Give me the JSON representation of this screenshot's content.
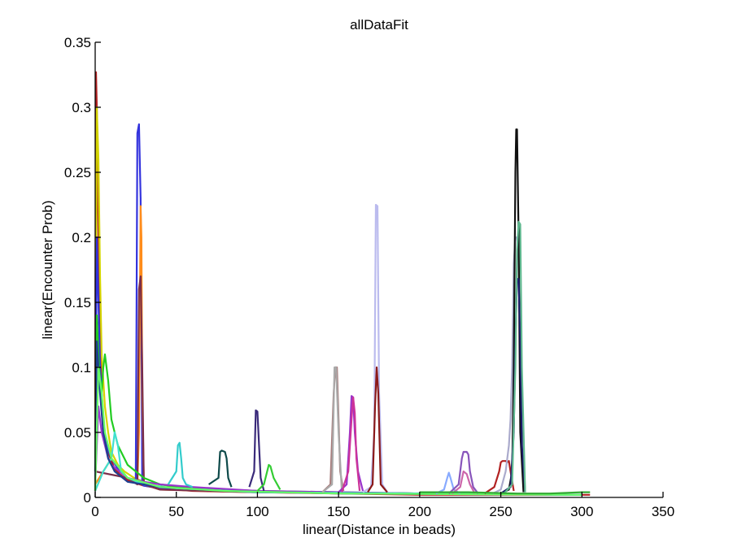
{
  "chart_data": {
    "type": "line",
    "title": "allDataFit",
    "xlabel": "linear(Distance in beads)",
    "ylabel": "linear(Encounter Prob)",
    "xlim": [
      0,
      350
    ],
    "ylim": [
      0,
      0.35
    ],
    "xticks": [
      "0",
      "50",
      "100",
      "150",
      "200",
      "250",
      "300",
      "350"
    ],
    "yticks": [
      "0",
      "0.05",
      "0.1",
      "0.15",
      "0.2",
      "0.25",
      "0.3",
      "0.35"
    ],
    "grid": false,
    "legend": "none",
    "series": [
      {
        "color": "#b22222",
        "x": [
          0,
          0.5,
          1,
          2,
          3,
          4,
          5,
          6,
          8,
          10,
          12,
          15,
          18,
          22,
          25,
          30,
          40,
          60,
          100,
          150,
          200,
          250,
          300,
          305
        ],
        "y": [
          0.05,
          0.327,
          0.3,
          0.2,
          0.12,
          0.08,
          0.06,
          0.045,
          0.035,
          0.028,
          0.022,
          0.018,
          0.015,
          0.012,
          0.011,
          0.009,
          0.007,
          0.005,
          0.004,
          0.003,
          0.002,
          0.002,
          0.002,
          0.002
        ]
      },
      {
        "color": "#d4d400",
        "x": [
          0,
          1,
          2,
          3,
          4,
          6,
          8,
          10,
          14,
          18,
          24,
          30,
          50,
          80,
          120,
          200,
          300
        ],
        "y": [
          0.03,
          0.3,
          0.26,
          0.17,
          0.11,
          0.07,
          0.05,
          0.035,
          0.025,
          0.02,
          0.015,
          0.012,
          0.008,
          0.006,
          0.004,
          0.003,
          0.002
        ]
      },
      {
        "color": "#3333dd",
        "x": [
          0,
          1,
          2,
          3,
          5,
          7,
          10,
          15,
          20,
          25,
          26,
          27,
          28,
          29,
          30,
          35,
          50,
          100,
          200,
          300
        ],
        "y": [
          0.02,
          0.2,
          0.15,
          0.1,
          0.06,
          0.04,
          0.03,
          0.02,
          0.015,
          0.012,
          0.28,
          0.287,
          0.23,
          0.01,
          0.009,
          0.008,
          0.006,
          0.004,
          0.003,
          0.002
        ]
      },
      {
        "color": "#ff8c1a",
        "x": [
          0,
          10,
          20,
          26,
          27,
          28,
          28.5,
          29,
          30,
          40,
          100,
          300
        ],
        "y": [
          0.01,
          0.03,
          0.015,
          0.01,
          0.05,
          0.224,
          0.2,
          0.08,
          0.01,
          0.006,
          0.004,
          0.002
        ]
      },
      {
        "color": "#7a2e4a",
        "x": [
          0,
          20,
          26,
          27,
          28,
          29,
          30,
          40,
          100,
          300
        ],
        "y": [
          0.02,
          0.015,
          0.01,
          0.16,
          0.17,
          0.1,
          0.01,
          0.006,
          0.004,
          0.002
        ]
      },
      {
        "color": "#22cc22",
        "x": [
          0,
          1,
          2,
          3,
          4,
          5,
          6,
          8,
          10,
          12,
          14,
          16,
          20,
          30,
          40,
          60,
          100,
          200,
          300
        ],
        "y": [
          0.02,
          0.14,
          0.11,
          0.09,
          0.08,
          0.1,
          0.11,
          0.09,
          0.06,
          0.05,
          0.04,
          0.035,
          0.025,
          0.015,
          0.01,
          0.007,
          0.005,
          0.003,
          0.002
        ]
      },
      {
        "color": "#9933cc",
        "x": [
          0,
          2,
          4,
          6,
          8,
          10,
          15,
          20,
          30,
          40,
          60,
          100,
          200,
          300
        ],
        "y": [
          0.01,
          0.07,
          0.05,
          0.04,
          0.03,
          0.025,
          0.02,
          0.015,
          0.012,
          0.01,
          0.008,
          0.005,
          0.003,
          0.002
        ]
      },
      {
        "color": "#40e0d0",
        "x": [
          0,
          5,
          10,
          12,
          14,
          16,
          20,
          30,
          50,
          100,
          300
        ],
        "y": [
          0.005,
          0.02,
          0.03,
          0.05,
          0.04,
          0.02,
          0.015,
          0.01,
          0.007,
          0.004,
          0.002
        ]
      },
      {
        "color": "#1f3f8f",
        "x": [
          0,
          1,
          3,
          5,
          8,
          12,
          20,
          40,
          80,
          150,
          300
        ],
        "y": [
          0.005,
          0.12,
          0.08,
          0.05,
          0.03,
          0.02,
          0.012,
          0.008,
          0.005,
          0.003,
          0.002
        ]
      },
      {
        "color": "#66ff66",
        "x": [
          0,
          2,
          4,
          6,
          10,
          20,
          40,
          80,
          150,
          300
        ],
        "y": [
          0.005,
          0.1,
          0.08,
          0.05,
          0.03,
          0.015,
          0.008,
          0.005,
          0.003,
          0.002
        ]
      },
      {
        "color": "#33cccc",
        "x": [
          45,
          50,
          51,
          52,
          53,
          54,
          56,
          60
        ],
        "y": [
          0.01,
          0.02,
          0.04,
          0.042,
          0.03,
          0.015,
          0.01,
          0.008
        ]
      },
      {
        "color": "#0e4a4a",
        "x": [
          70,
          76,
          77,
          78,
          80,
          81,
          82,
          84
        ],
        "y": [
          0.01,
          0.015,
          0.035,
          0.036,
          0.035,
          0.03,
          0.015,
          0.008
        ]
      },
      {
        "color": "#3a2a7a",
        "x": [
          95,
          98,
          99,
          100,
          101,
          102,
          104
        ],
        "y": [
          0.008,
          0.02,
          0.067,
          0.066,
          0.04,
          0.015,
          0.005
        ]
      },
      {
        "color": "#33cc33",
        "x": [
          100,
          104,
          106,
          107,
          108,
          110,
          114
        ],
        "y": [
          0.005,
          0.01,
          0.02,
          0.025,
          0.024,
          0.015,
          0.006
        ]
      },
      {
        "color": "#a87a7a",
        "x": [
          140,
          145,
          147,
          148,
          149,
          150,
          151,
          153
        ],
        "y": [
          0.004,
          0.01,
          0.08,
          0.1,
          0.1,
          0.06,
          0.02,
          0.005
        ]
      },
      {
        "color": "#aaaaaa",
        "x": [
          140,
          146,
          147.5,
          148.5,
          150,
          152
        ],
        "y": [
          0.004,
          0.01,
          0.1,
          0.1,
          0.05,
          0.005
        ]
      },
      {
        "color": "#9933cc",
        "x": [
          150,
          155,
          157,
          158,
          159,
          160,
          162,
          165
        ],
        "y": [
          0.004,
          0.01,
          0.05,
          0.078,
          0.077,
          0.05,
          0.02,
          0.005
        ]
      },
      {
        "color": "#cc3399",
        "x": [
          152,
          156,
          158,
          159,
          160,
          161,
          163
        ],
        "y": [
          0.004,
          0.02,
          0.06,
          0.077,
          0.065,
          0.03,
          0.005
        ]
      },
      {
        "color": "#bbbbee",
        "x": [
          165,
          170,
          172,
          173,
          174,
          175,
          177,
          180
        ],
        "y": [
          0.004,
          0.008,
          0.05,
          0.225,
          0.224,
          0.08,
          0.01,
          0.004
        ]
      },
      {
        "color": "#8b1a1a",
        "x": [
          168,
          171,
          172.5,
          173.5,
          174.5,
          176,
          180
        ],
        "y": [
          0.004,
          0.01,
          0.07,
          0.1,
          0.08,
          0.01,
          0.004
        ]
      },
      {
        "color": "#88aaff",
        "x": [
          210,
          215,
          217,
          218,
          219,
          221,
          225
        ],
        "y": [
          0.003,
          0.006,
          0.015,
          0.019,
          0.015,
          0.006,
          0.003
        ]
      },
      {
        "color": "#8855bb",
        "x": [
          218,
          224,
          226,
          227,
          228,
          229,
          230,
          231,
          233,
          236
        ],
        "y": [
          0.003,
          0.01,
          0.03,
          0.035,
          0.035,
          0.035,
          0.033,
          0.02,
          0.008,
          0.003
        ]
      },
      {
        "color": "#cc66aa",
        "x": [
          220,
          225,
          227,
          229,
          231,
          234
        ],
        "y": [
          0.003,
          0.008,
          0.02,
          0.018,
          0.01,
          0.003
        ]
      },
      {
        "color": "#b22222",
        "x": [
          240,
          246,
          249,
          250,
          251,
          252,
          253,
          254,
          255,
          256,
          258
        ],
        "y": [
          0.003,
          0.008,
          0.02,
          0.027,
          0.028,
          0.028,
          0.028,
          0.027,
          0.028,
          0.02,
          0.005
        ]
      },
      {
        "color": "#aaaacc",
        "x": [
          245,
          250,
          253,
          255,
          256,
          257,
          258,
          259,
          260,
          261,
          262,
          265
        ],
        "y": [
          0.003,
          0.006,
          0.02,
          0.04,
          0.06,
          0.1,
          0.18,
          0.2,
          0.2,
          0.19,
          0.1,
          0.004
        ]
      },
      {
        "color": "#111111",
        "x": [
          250,
          255,
          257,
          258,
          259,
          259.5,
          260,
          261,
          262,
          264
        ],
        "y": [
          0.003,
          0.006,
          0.02,
          0.1,
          0.25,
          0.283,
          0.283,
          0.2,
          0.05,
          0.004
        ]
      },
      {
        "color": "#1a1a6a",
        "x": [
          250,
          256,
          258,
          259,
          260,
          261,
          262,
          263,
          265
        ],
        "y": [
          0.003,
          0.008,
          0.05,
          0.12,
          0.168,
          0.168,
          0.12,
          0.04,
          0.004
        ]
      },
      {
        "color": "#5fb88f",
        "x": [
          252,
          257,
          259,
          260,
          261,
          262,
          263,
          265
        ],
        "y": [
          0.003,
          0.01,
          0.1,
          0.19,
          0.212,
          0.21,
          0.1,
          0.004
        ]
      },
      {
        "color": "#33aa33",
        "x": [
          200,
          230,
          260,
          280,
          300,
          305
        ],
        "y": [
          0.004,
          0.004,
          0.003,
          0.003,
          0.004,
          0.004
        ]
      }
    ]
  }
}
